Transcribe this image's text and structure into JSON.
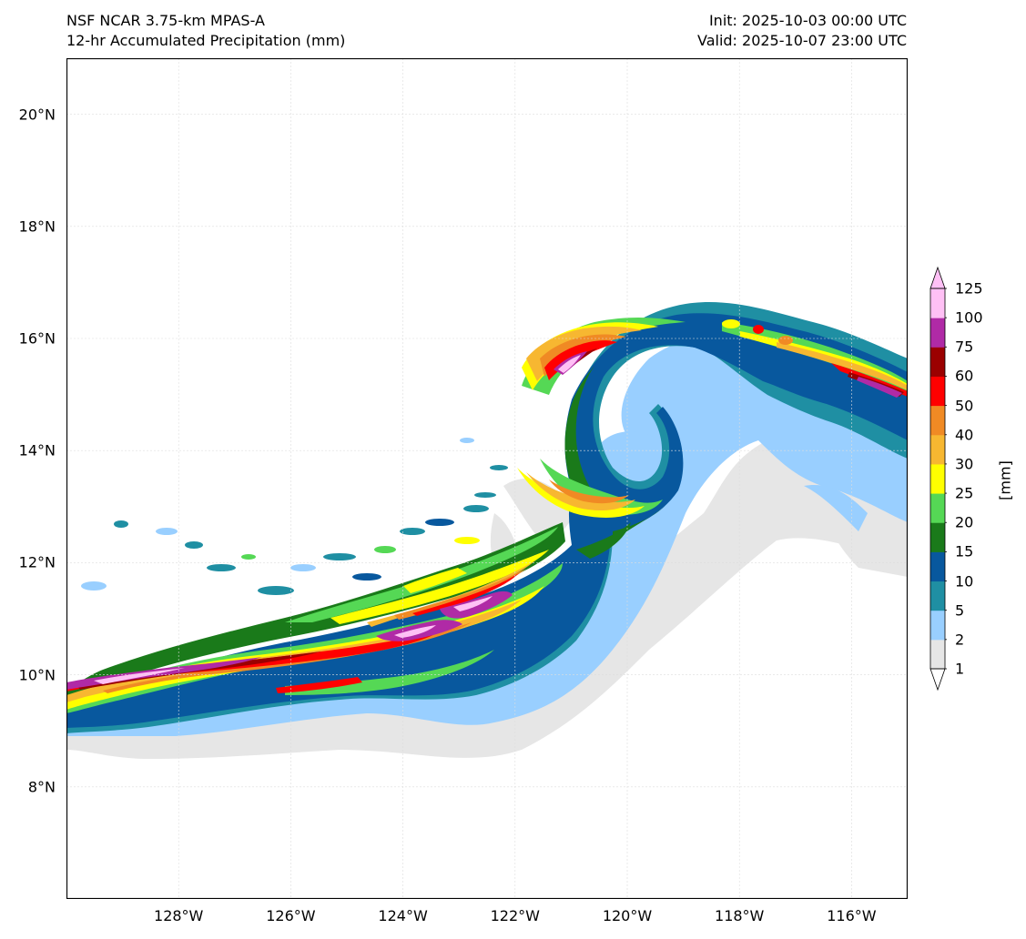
{
  "title": {
    "left_line1": "NSF NCAR 3.75-km MPAS-A",
    "left_line2": "12-hr Accumulated Precipitation (mm)",
    "right_line1": "Init: 2025-10-03 00:00 UTC",
    "right_line2": "Valid: 2025-10-07 23:00 UTC"
  },
  "map": {
    "lon_range": [
      -130,
      -115
    ],
    "lat_range": [
      6,
      21
    ],
    "lat_ticks": [
      {
        "value": 20,
        "label": "20°N"
      },
      {
        "value": 18,
        "label": "18°N"
      },
      {
        "value": 16,
        "label": "16°N"
      },
      {
        "value": 14,
        "label": "14°N"
      },
      {
        "value": 12,
        "label": "12°N"
      },
      {
        "value": 10,
        "label": "10°N"
      },
      {
        "value": 8,
        "label": "8°N"
      }
    ],
    "lon_ticks": [
      {
        "value": -128,
        "label": "128°W"
      },
      {
        "value": -126,
        "label": "126°W"
      },
      {
        "value": -124,
        "label": "124°W"
      },
      {
        "value": -122,
        "label": "122°W"
      },
      {
        "value": -120,
        "label": "120°W"
      },
      {
        "value": -118,
        "label": "118°W"
      },
      {
        "value": -116,
        "label": "116°W"
      }
    ]
  },
  "colorbar": {
    "unit_label": "[mm]",
    "levels": [
      "1",
      "2",
      "5",
      "10",
      "15",
      "20",
      "25",
      "30",
      "40",
      "50",
      "60",
      "75",
      "100",
      "125"
    ],
    "colors": [
      "#e6e6e6",
      "#99cfff",
      "#1f8fa3",
      "#08589e",
      "#1a7a1a",
      "#55d855",
      "#ffff00",
      "#f7b731",
      "#f08a24",
      "#ff0000",
      "#9b0000",
      "#b02aa6",
      "#ffc0f5"
    ]
  }
}
